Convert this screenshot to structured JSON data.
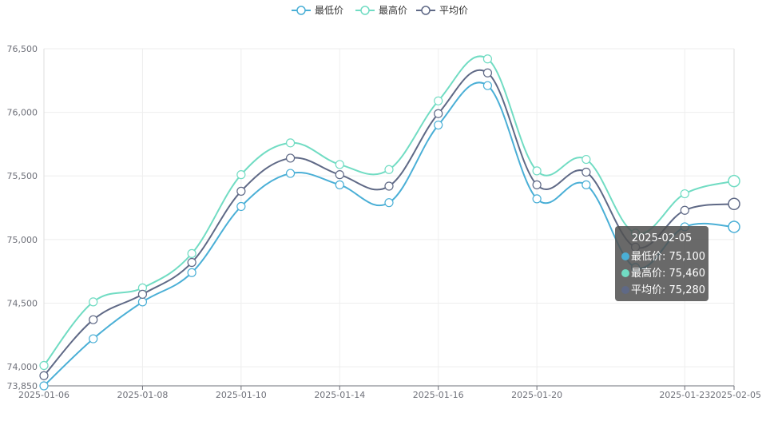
{
  "chart_data": {
    "type": "line",
    "x": [
      "2025-01-06",
      "2025-01-07",
      "2025-01-08",
      "2025-01-09",
      "2025-01-10",
      "2025-01-13",
      "2025-01-14",
      "2025-01-15",
      "2025-01-16",
      "2025-01-17",
      "2025-01-20",
      "2025-01-21",
      "2025-01-22",
      "2025-01-23",
      "2025-02-05"
    ],
    "x_tick_labels": [
      "2025-01-06",
      "2025-01-08",
      "2025-01-10",
      "2025-01-14",
      "2025-01-16",
      "2025-01-20",
      "2025-01-23",
      "2025-02-05"
    ],
    "y_tick_labels": [
      "73,850",
      "74,000",
      "74,500",
      "75,000",
      "75,500",
      "76,000",
      "76,500"
    ],
    "ylim": [
      73850,
      76500
    ],
    "y_ticks": [
      73850,
      74000,
      74500,
      75000,
      75500,
      76000,
      76500
    ],
    "grid": true,
    "smooth": true,
    "legend_position": "top-center",
    "series": [
      {
        "name": "最低价",
        "color": "#4aafd6",
        "values": [
          73850,
          74220,
          74510,
          74740,
          75260,
          75520,
          75430,
          75290,
          75900,
          76210,
          75320,
          75430,
          74780,
          75100,
          75100
        ]
      },
      {
        "name": "最高价",
        "color": "#71dcc3",
        "values": [
          74010,
          74510,
          74620,
          74890,
          75510,
          75760,
          75590,
          75550,
          76090,
          76420,
          75540,
          75630,
          75050,
          75360,
          75460
        ]
      },
      {
        "name": "平均价",
        "color": "#5f6986",
        "values": [
          73930,
          74370,
          74570,
          74820,
          75380,
          75640,
          75510,
          75420,
          75990,
          76310,
          75430,
          75530,
          74940,
          75230,
          75280
        ]
      }
    ]
  },
  "tooltip": {
    "date": "2025-02-05",
    "rows": [
      {
        "name": "最低价",
        "value": "75,100",
        "color": "#4aafd6"
      },
      {
        "name": "最高价",
        "value": "75,460",
        "color": "#71dcc3"
      },
      {
        "name": "平均价",
        "value": "75,280",
        "color": "#5f6986"
      }
    ]
  }
}
